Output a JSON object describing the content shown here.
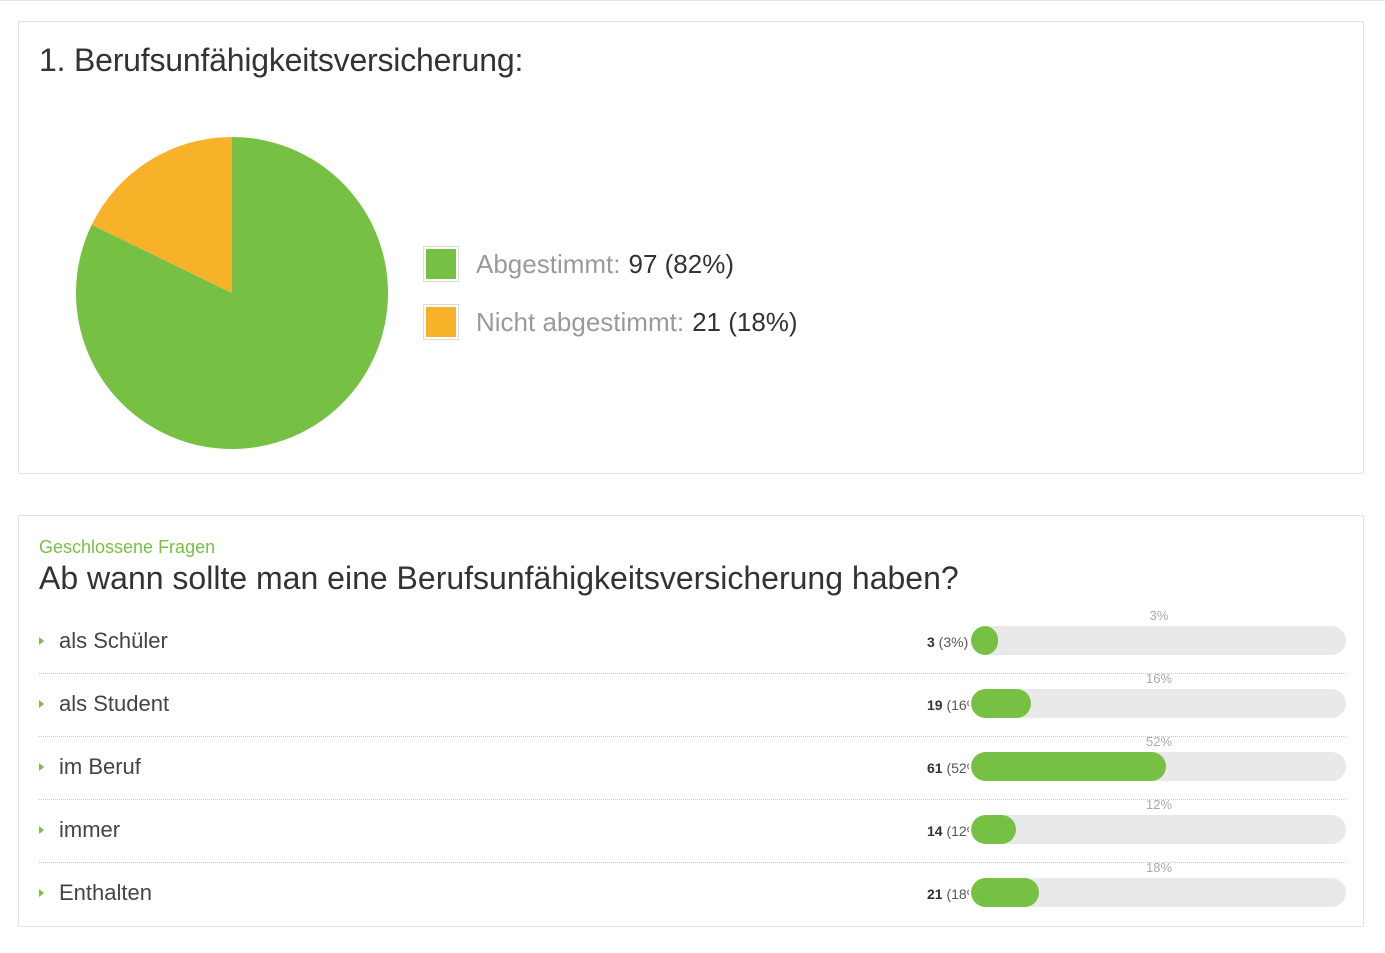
{
  "colors": {
    "green": "#76c143",
    "orange": "#f7b22a"
  },
  "participation": {
    "title": "1. Berufsunfähigkeitsversicherung:",
    "legend": [
      {
        "label": "Abgestimmt:",
        "value": "97 (82%)"
      },
      {
        "label": "Nicht abgestimmt:",
        "value": "21 (18%)"
      }
    ]
  },
  "question": {
    "kicker": "Geschlossene Fragen",
    "title": "Ab wann sollte man eine Berufsunfähigkeitsversicherung haben?",
    "options": [
      {
        "label": "als Schüler",
        "count": "3",
        "pct_text": " (3%)",
        "pct_label": "3%"
      },
      {
        "label": "als Student",
        "count": "19",
        "pct_text": " (16%)",
        "pct_label": "16%"
      },
      {
        "label": "im Beruf",
        "count": "61",
        "pct_text": " (52%)",
        "pct_label": "52%"
      },
      {
        "label": "immer",
        "count": "14",
        "pct_text": " (12%)",
        "pct_label": "12%"
      },
      {
        "label": "Enthalten",
        "count": "21",
        "pct_text": " (18%)",
        "pct_label": "18%"
      }
    ]
  },
  "chart_data": [
    {
      "type": "pie",
      "title": "1. Berufsunfähigkeitsversicherung:",
      "categories": [
        "Abgestimmt",
        "Nicht abgestimmt"
      ],
      "values": [
        97,
        21
      ],
      "colors": [
        "#76c143",
        "#f7b22a"
      ],
      "legend": "right"
    },
    {
      "type": "bar",
      "orientation": "horizontal",
      "title": "Ab wann sollte man eine Berufsunfähigkeitsversicherung haben?",
      "categories": [
        "als Schüler",
        "als Student",
        "im Beruf",
        "immer",
        "Enthalten"
      ],
      "values": [
        3,
        19,
        61,
        14,
        21
      ],
      "percent": [
        3,
        16,
        52,
        12,
        18
      ],
      "xlim": [
        0,
        100
      ]
    }
  ]
}
